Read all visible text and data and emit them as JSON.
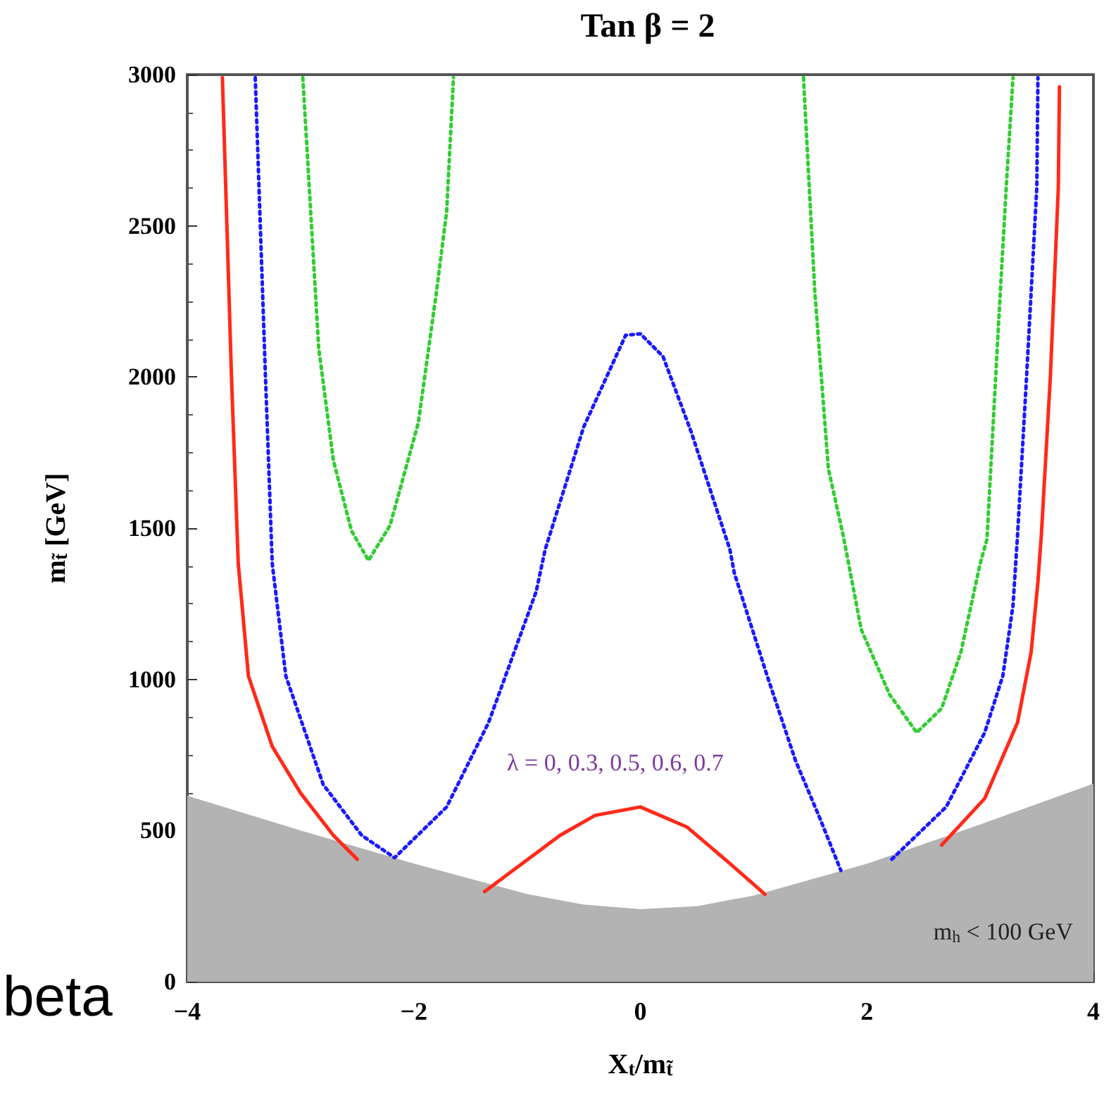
{
  "chart_data": {
    "type": "line",
    "title": "Tan β = 2",
    "xlabel": "X$_{t}$/m$_{t̃}$",
    "ylabel": "m$_{t̃}$ [GeV]",
    "xlim": [
      -4,
      4
    ],
    "ylim": [
      0,
      3000
    ],
    "xticks": [
      -4,
      -2,
      0,
      2,
      4
    ],
    "yticks": [
      0,
      500,
      1000,
      1500,
      2000,
      2500,
      3000
    ],
    "grid": false,
    "marker": "none",
    "annotations": [
      "λ = 0, 0.3, 0.5, 0.6, 0.7",
      "m$_{h}$ < 100 GeV",
      "beta"
    ],
    "series": [
      {
        "type": "area",
        "color": "#b3b3b3",
        "x": [
          -4,
          -3,
          -2,
          -1,
          -0.5,
          0,
          0.5,
          1,
          2,
          3,
          4
        ],
        "values": [
          615,
          500,
          391,
          290,
          255,
          240,
          250,
          285,
          390,
          520,
          655
        ]
      },
      {
        "color": "#ff2a1a",
        "line_style": "solid",
        "x": [
          -3.69,
          -3.61,
          -3.55,
          -3.46,
          -3.25,
          -3.0,
          -2.71,
          -2.5,
          -2.0,
          -1.375,
          -0.96,
          -0.71,
          -0.4,
          0,
          0.41,
          0.79,
          1.1,
          2.0,
          2.66,
          3.04,
          3.33,
          3.45,
          3.51,
          3.54,
          3.62,
          3.69,
          3.7
        ],
        "values": [
          2990,
          2003,
          1383,
          1011,
          778,
          624,
          484,
          405,
          null,
          298,
          414,
          484,
          550,
          578,
          512,
          391,
          289,
          null,
          452,
          606,
          857,
          1090,
          1323,
          1477,
          2003,
          2627,
          2960
        ]
      },
      {
        "color": "#1a1aff",
        "line_style": "dotted",
        "x": [
          -3.4,
          -3.31,
          -3.25,
          -3.13,
          -2.8,
          -2.46,
          -2.17,
          -1.71,
          -1.34,
          -0.92,
          -0.84,
          -0.5,
          -0.13,
          0,
          0.2,
          0.45,
          0.79,
          0.83,
          1.12,
          1.37,
          1.58,
          1.77,
          2.0,
          2.22,
          2.7,
          3.04,
          3.2,
          3.29,
          3.33,
          3.41,
          3.5,
          3.51
        ],
        "values": [
          2990,
          2003,
          1383,
          1011,
          652,
          484,
          410,
          578,
          857,
          1290,
          1430,
          1835,
          2138,
          2143,
          2068,
          1817,
          1430,
          1351,
          1011,
          731,
          545,
          368,
          null,
          405,
          578,
          824,
          1011,
          1244,
          1477,
          2003,
          2627,
          2990
        ]
      },
      {
        "color": "#33cc33",
        "line_style": "dotted",
        "x": [
          -2.98,
          -2.84,
          -2.71,
          -2.55,
          -2.4,
          -2.21,
          -1.96,
          -1.8,
          -1.71,
          -1.65,
          0,
          1.44,
          1.54,
          1.66,
          1.79,
          1.95,
          2.2,
          2.44,
          2.66,
          2.83,
          3.0,
          3.06,
          3.16,
          3.23,
          3.29
        ],
        "values": [
          2990,
          2096,
          1724,
          1491,
          1393,
          1509,
          1849,
          2282,
          2548,
          2990,
          null,
          2990,
          2282,
          1696,
          1477,
          1165,
          950,
          824,
          904,
          1090,
          1383,
          1463,
          2161,
          2627,
          2990
        ]
      }
    ]
  }
}
